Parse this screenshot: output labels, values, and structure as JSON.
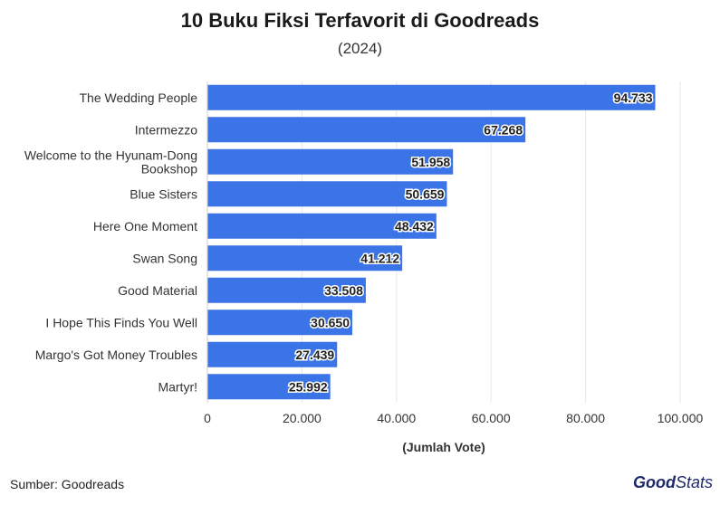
{
  "header": {
    "title": "10 Buku Fiksi Terfavorit di Goodreads",
    "subtitle": "(2024)"
  },
  "footer": {
    "source": "Sumber: Goodreads",
    "logo_bold": "Good",
    "logo_light": "Stats"
  },
  "colors": {
    "bar": "#3b74e6",
    "grid": "#e6e6e6"
  },
  "chart_data": {
    "type": "bar",
    "orientation": "horizontal",
    "title": "10 Buku Fiksi Terfavorit di Goodreads",
    "subtitle": "(2024)",
    "xlabel": "(Jumlah Vote)",
    "ylabel": "",
    "xlim": [
      0,
      100000
    ],
    "xticks": [
      0,
      20000,
      40000,
      60000,
      80000,
      100000
    ],
    "xtick_labels": [
      "0",
      "20.000",
      "40.000",
      "60.000",
      "80.000",
      "100.000"
    ],
    "grid": true,
    "categories": [
      "The Wedding People",
      "Intermezzo",
      "Welcome to the Hyunam-Dong Bookshop",
      "Blue Sisters",
      "Here One Moment",
      "Swan Song",
      "Good Material",
      "I Hope This Finds You Well",
      "Margo's Got Money Troubles",
      "Martyr!"
    ],
    "category_lines": [
      [
        "The Wedding People"
      ],
      [
        "Intermezzo"
      ],
      [
        "Welcome to the Hyunam-Dong",
        "Bookshop"
      ],
      [
        "Blue Sisters"
      ],
      [
        "Here One Moment"
      ],
      [
        "Swan Song"
      ],
      [
        "Good Material"
      ],
      [
        "I Hope This Finds You Well"
      ],
      [
        "Margo's Got Money Troubles"
      ],
      [
        "Martyr!"
      ]
    ],
    "values": [
      94733,
      67268,
      51958,
      50659,
      48432,
      41212,
      33508,
      30650,
      27439,
      25992
    ],
    "value_labels": [
      "94.733",
      "67.268",
      "51.958",
      "50.659",
      "48.432",
      "41.212",
      "33.508",
      "30.650",
      "27.439",
      "25.992"
    ]
  }
}
